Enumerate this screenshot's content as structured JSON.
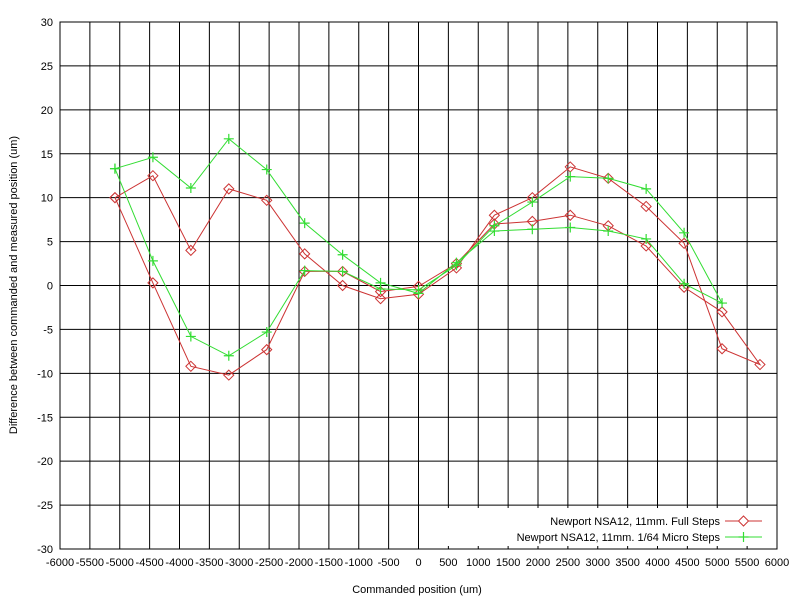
{
  "chart_data": {
    "type": "line",
    "xlabel": "Commanded position (um)",
    "ylabel": "Difference between commanded and measured position (um)",
    "xlim": [
      -6000,
      6000
    ],
    "ylim": [
      -30,
      30
    ],
    "x_ticks": [
      -6000,
      -5500,
      -5000,
      -4500,
      -4000,
      -3500,
      -3000,
      -2500,
      -2000,
      -1500,
      -1000,
      -500,
      0,
      500,
      1000,
      1500,
      2000,
      2500,
      3000,
      3500,
      4000,
      4500,
      5000,
      5500,
      6000
    ],
    "y_ticks": [
      -30,
      -25,
      -20,
      -15,
      -10,
      -5,
      0,
      5,
      10,
      15,
      20,
      25,
      30
    ],
    "grid": true,
    "legend_position": "bottom-right",
    "series": [
      {
        "name": "Newport NSA12, 11mm. Full Steps",
        "color": "#cc3333",
        "marker": "diamond",
        "x": [
          -5080,
          -4445,
          -3810,
          -3175,
          -2540,
          -1905,
          -1270,
          -635,
          0,
          635,
          1270,
          1905,
          2540,
          3175,
          3810,
          4445,
          5080,
          5715,
          5080,
          4445,
          3810,
          3175,
          2540,
          1905,
          1270,
          635,
          0,
          -635,
          -1270,
          -1905,
          -2540,
          -3175,
          -3810,
          -4445,
          -5080
        ],
        "y": [
          10,
          12.5,
          4,
          11,
          9.7,
          3.6,
          0,
          -1.5,
          -1,
          2,
          8,
          10,
          13.5,
          12.2,
          9,
          4.8,
          -7.2,
          -9,
          -3,
          -0.2,
          4.5,
          6.8,
          8,
          7.3,
          7,
          2.5,
          -0.1,
          -0.7,
          1.6,
          1.6,
          -7.3,
          -10.2,
          -9.2,
          0.3,
          10
        ]
      },
      {
        "name": "Newport NSA12, 11mm. 1/64 Micro Steps",
        "color": "#33dd33",
        "marker": "plus",
        "x": [
          -5080,
          -4445,
          -3810,
          -3175,
          -2540,
          -1905,
          -1270,
          -635,
          0,
          635,
          1270,
          1905,
          2540,
          3175,
          3810,
          4445,
          5080,
          4445,
          3810,
          3175,
          2540,
          1905,
          1270,
          635,
          0,
          -635,
          -1270,
          -1905,
          -2540,
          -3175,
          -3810,
          -4445,
          -5080
        ],
        "y": [
          13.3,
          14.6,
          11.1,
          16.7,
          13.2,
          7.1,
          3.5,
          0.3,
          -0.9,
          2.6,
          6.2,
          6.4,
          6.6,
          6.2,
          5.3,
          0.2,
          -2,
          6,
          11,
          12.2,
          12.4,
          9.5,
          6.8,
          2.3,
          -0.5,
          -0.4,
          1.6,
          1.7,
          -5.3,
          -8,
          -5.8,
          2.8,
          13.3
        ]
      }
    ]
  }
}
